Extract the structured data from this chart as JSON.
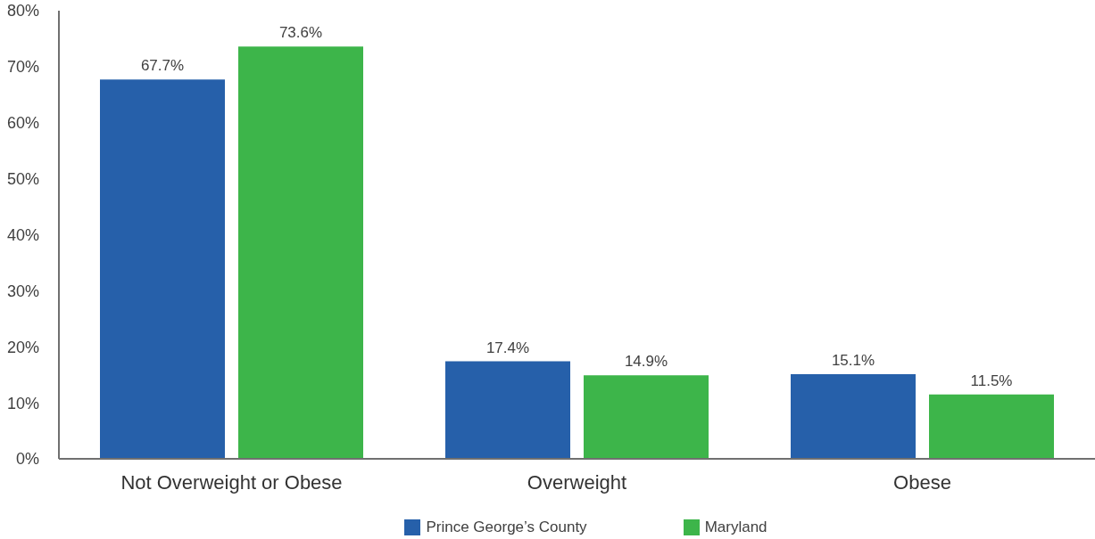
{
  "chart_data": {
    "type": "bar",
    "categories": [
      "Not Overweight or Obese",
      "Overweight",
      "Obese"
    ],
    "series": [
      {
        "name": "Prince George’s County",
        "color": "#2660aa",
        "values": [
          67.7,
          17.4,
          15.1
        ],
        "value_labels": [
          "67.7%",
          "17.4%",
          "15.1%"
        ]
      },
      {
        "name": "Maryland",
        "color": "#3db54a",
        "values": [
          73.6,
          14.9,
          11.5
        ],
        "value_labels": [
          "73.6%",
          "14.9%",
          "11.5%"
        ]
      }
    ],
    "ylim": [
      0,
      80
    ],
    "yticks": [
      {
        "value": 0,
        "label": "0%"
      },
      {
        "value": 10,
        "label": "10%"
      },
      {
        "value": 20,
        "label": "20%"
      },
      {
        "value": 30,
        "label": "30%"
      },
      {
        "value": 40,
        "label": "40%"
      },
      {
        "value": 50,
        "label": "50%"
      },
      {
        "value": 60,
        "label": "60%"
      },
      {
        "value": 70,
        "label": "70%"
      },
      {
        "value": 80,
        "label": "80%"
      }
    ],
    "grid": false,
    "legend": "bottom"
  }
}
